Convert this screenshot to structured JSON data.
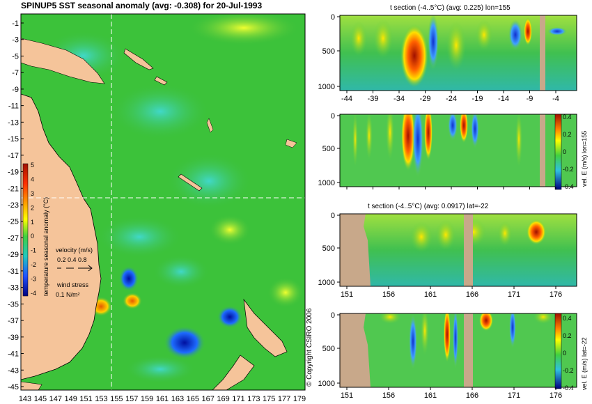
{
  "main_map": {
    "title": "SPINUP5 SST seasonal anomaly (avg: -0.308) for 20-Jul-1993",
    "y_ticks": [
      "-1",
      "-3",
      "-5",
      "-7",
      "-9",
      "-11",
      "-13",
      "-15",
      "-17",
      "-19",
      "-21",
      "-23",
      "-25",
      "-27",
      "-29",
      "-31",
      "-33",
      "-35",
      "-37",
      "-39",
      "-41",
      "-43",
      "-45"
    ],
    "x_ticks": [
      "143",
      "145",
      "147",
      "149",
      "151",
      "153",
      "155",
      "157",
      "159",
      "161",
      "163",
      "165",
      "167",
      "169",
      "171",
      "173",
      "175",
      "177",
      "179"
    ],
    "colorbar": {
      "label": "temperature seasonal anomaly (°C)",
      "ticks": [
        "5",
        "4",
        "3",
        "2",
        "1",
        "0",
        "-1",
        "-2",
        "-3",
        "-4"
      ]
    },
    "velocity_legend": {
      "label": "velocity (m/s)",
      "scale": "0.2 0.4 0.8"
    },
    "wind_legend": {
      "label": "wind stress",
      "scale": "0.1 N/m²"
    },
    "crosshair": {
      "lon": 155,
      "lat": -22
    }
  },
  "panels": [
    {
      "id": "t-section-lon",
      "title": "t section (-4..5°C) (avg: 0.225) lon=155",
      "y_ticks": [
        "0",
        "500",
        "1000"
      ],
      "x_ticks": [
        "-44",
        "-39",
        "-34",
        "-29",
        "-24",
        "-19",
        "-14",
        "-9",
        "-4"
      ]
    },
    {
      "id": "vel-lon",
      "title": "",
      "y_ticks": [
        "0",
        "500",
        "1000"
      ],
      "x_ticks": [
        "-44",
        "-39",
        "-34",
        "-29",
        "-24",
        "-19",
        "-14",
        "-9",
        "-4"
      ],
      "colorbar": {
        "label": "vel. E (m/s) lon=155",
        "ticks": [
          "0.4",
          "0.2",
          "0",
          "-0.2",
          "-0.4"
        ]
      }
    },
    {
      "id": "t-section-lat",
      "title": "t section (-4..5°C) (avg: 0.0917) lat=-22",
      "y_ticks": [
        "0",
        "500",
        "1000"
      ],
      "x_ticks": [
        "151",
        "156",
        "161",
        "166",
        "171",
        "176"
      ]
    },
    {
      "id": "vel-lat",
      "title": "",
      "y_ticks": [
        "0",
        "500",
        "1000"
      ],
      "x_ticks": [
        "151",
        "156",
        "161",
        "166",
        "171",
        "176"
      ],
      "colorbar": {
        "label": "vel. E (m/s) lat=-22",
        "ticks": [
          "0.4",
          "0.2",
          "0",
          "-0.2",
          "-0.4"
        ]
      }
    }
  ],
  "copyright": "© Copyright CSIRO 2006",
  "colors": {
    "ocean": "#3cc23a",
    "land": "#f5c49a",
    "section_land": "#c8a88a",
    "warm": "#ffff00",
    "hot": "#c81e00",
    "cool": "#1e78ff",
    "cold": "#0000a0"
  }
}
